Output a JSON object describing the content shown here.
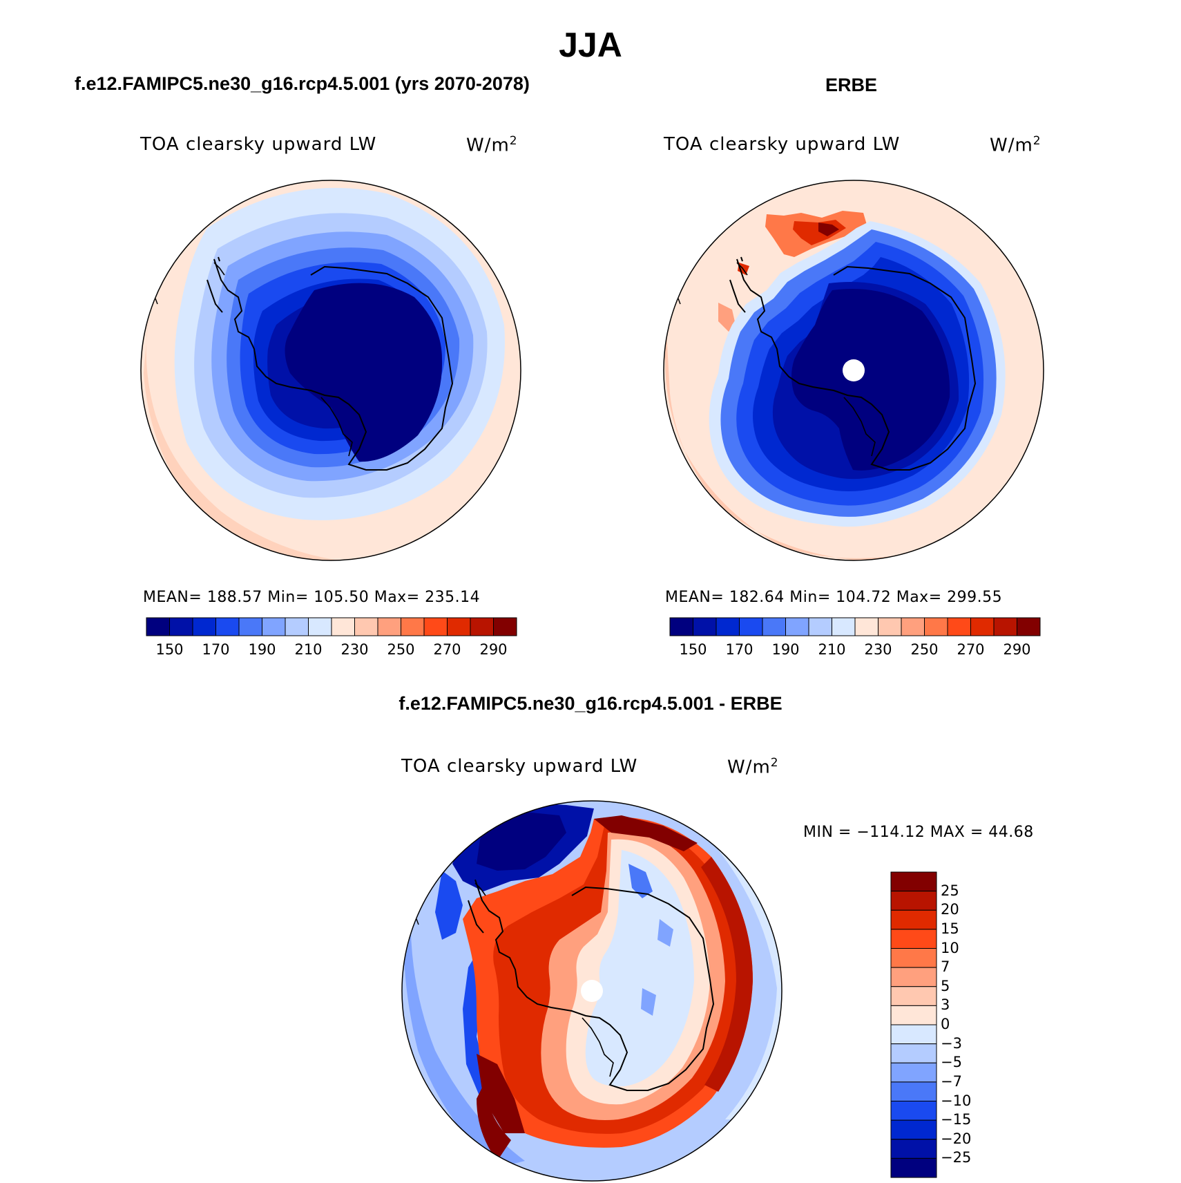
{
  "main_title": "JJA",
  "panels": [
    {
      "title": "f.e12.FAMIPC5.ne30_g16.rcp4.5.001 (yrs 2070-2078)",
      "variable": "TOA clearsky upward LW",
      "units": "W/m",
      "units_exp": "2",
      "stats": "MEAN=  188.57    Min=  105.50    Max=  235.14"
    },
    {
      "title": "ERBE",
      "variable": "TOA clearsky upward LW",
      "units": "W/m",
      "units_exp": "2",
      "stats": "MEAN=  182.64    Min=  104.72    Max=  299.55"
    },
    {
      "title": "f.e12.FAMIPC5.ne30_g16.rcp4.5.001 - ERBE",
      "variable": "TOA clearsky upward LW",
      "units": "W/m",
      "units_exp": "2",
      "stats": "MIN  =  −114.12  MAX  =    44.68"
    }
  ],
  "colorbar_abs": {
    "labels": [
      "150",
      "170",
      "190",
      "210",
      "230",
      "250",
      "270",
      "290"
    ],
    "colors": [
      "#00007f",
      "#0011a8",
      "#0028d0",
      "#1a4af0",
      "#4a78f8",
      "#80a4ff",
      "#b4ccff",
      "#d8e8ff",
      "#ffe6d8",
      "#ffc8b0",
      "#ffa07e",
      "#ff7848",
      "#ff4a18",
      "#e02a00",
      "#b81400",
      "#820000"
    ]
  },
  "colorbar_diff": {
    "labels": [
      "25",
      "20",
      "15",
      "10",
      "7",
      "5",
      "3",
      "0",
      "−3",
      "−5",
      "−7",
      "−10",
      "−15",
      "−20",
      "−25"
    ],
    "colors": [
      "#820000",
      "#b81400",
      "#e02a00",
      "#ff4a18",
      "#ff7848",
      "#ffa07e",
      "#ffc8b0",
      "#ffe6d8",
      "#d8e8ff",
      "#b4ccff",
      "#80a4ff",
      "#4a78f8",
      "#1a4af0",
      "#0028d0",
      "#0011a8",
      "#00007f"
    ]
  }
}
